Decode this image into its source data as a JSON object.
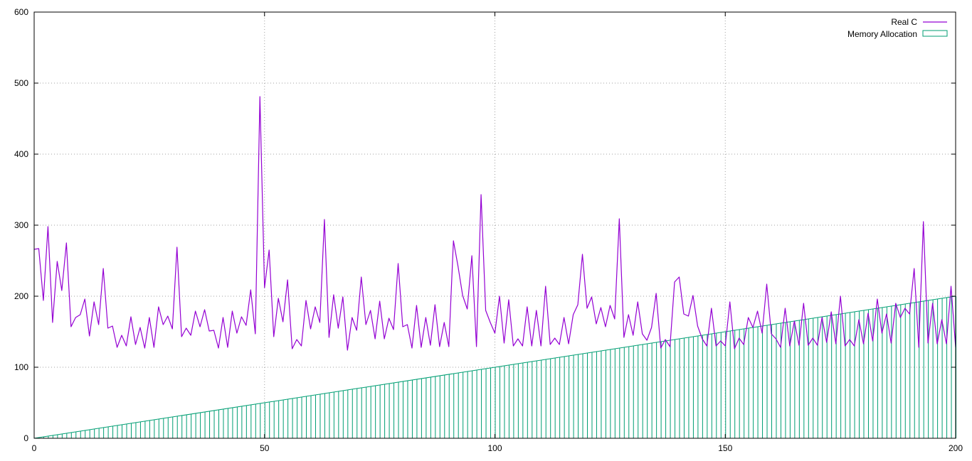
{
  "chart_data": {
    "type": "line",
    "xlim": [
      0,
      200
    ],
    "ylim": [
      0,
      600
    ],
    "x_ticks": [
      0,
      50,
      100,
      150,
      200
    ],
    "y_ticks": [
      0,
      100,
      200,
      300,
      400,
      500,
      600
    ],
    "grid": true,
    "legend_position": "top-right",
    "series": [
      {
        "name": "Real C",
        "style": "line",
        "color": "#9400d3",
        "values": [
          266,
          267,
          194,
          298,
          163,
          249,
          208,
          275,
          157,
          170,
          174,
          196,
          144,
          192,
          160,
          239,
          155,
          158,
          128,
          145,
          130,
          171,
          132,
          156,
          127,
          170,
          128,
          185,
          160,
          172,
          154,
          269,
          143,
          155,
          145,
          179,
          157,
          181,
          151,
          152,
          127,
          170,
          128,
          179,
          148,
          171,
          159,
          209,
          147,
          481,
          212,
          265,
          143,
          197,
          164,
          223,
          126,
          139,
          130,
          194,
          154,
          185,
          163,
          308,
          142,
          202,
          155,
          199,
          124,
          170,
          152,
          227,
          160,
          180,
          140,
          193,
          140,
          169,
          153,
          246,
          157,
          160,
          127,
          187,
          128,
          170,
          131,
          188,
          129,
          163,
          129,
          278,
          242,
          201,
          182,
          257,
          129,
          343,
          180,
          163,
          148,
          200,
          134,
          195,
          130,
          140,
          130,
          185,
          130,
          180,
          130,
          214,
          132,
          141,
          132,
          170,
          133,
          174,
          188,
          259,
          183,
          199,
          161,
          184,
          157,
          187,
          168,
          309,
          142,
          174,
          145,
          192,
          147,
          138,
          156,
          204,
          127,
          139,
          129,
          220,
          227,
          175,
          172,
          201,
          158,
          140,
          130,
          183,
          130,
          137,
          130,
          192,
          126,
          141,
          132,
          170,
          156,
          179,
          148,
          217,
          147,
          140,
          128,
          183,
          130,
          165,
          131,
          190,
          131,
          141,
          131,
          170,
          135,
          178,
          133,
          200,
          130,
          139,
          130,
          167,
          133,
          176,
          137,
          196,
          148,
          175,
          134,
          190,
          170,
          183,
          175,
          239,
          128,
          305,
          134,
          190,
          133,
          167,
          133,
          214,
          128
        ]
      },
      {
        "name": "Memory Allocation",
        "style": "impulses",
        "color": "#009e73",
        "values_rule": "y = x",
        "x_range": [
          0,
          200
        ]
      }
    ]
  }
}
